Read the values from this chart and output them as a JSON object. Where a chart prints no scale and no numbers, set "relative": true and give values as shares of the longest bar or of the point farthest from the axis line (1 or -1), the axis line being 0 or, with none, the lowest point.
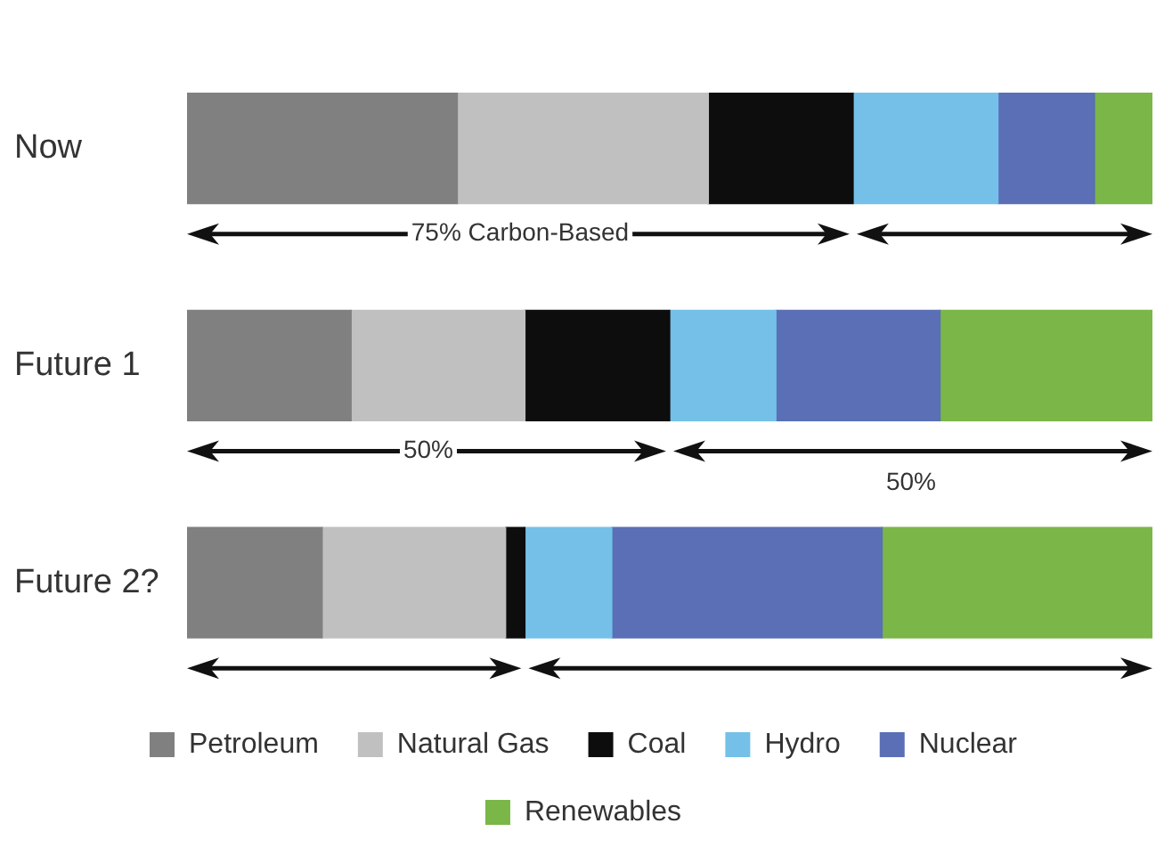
{
  "chart_data": {
    "type": "bar",
    "orientation": "horizontal",
    "stacked": true,
    "relative": true,
    "categories": [
      "Now",
      "Future 1",
      "Future 2?"
    ],
    "series": [
      {
        "name": "Petroleum",
        "color": "#808080",
        "values": [
          0.28,
          0.17,
          0.14
        ]
      },
      {
        "name": "Natural Gas",
        "color": "#c0c0c0",
        "values": [
          0.26,
          0.18,
          0.19
        ]
      },
      {
        "name": "Coal",
        "color": "#0d0d0d",
        "values": [
          0.15,
          0.15,
          0.02
        ]
      },
      {
        "name": "Hydro",
        "color": "#74c0e8",
        "values": [
          0.15,
          0.11,
          0.09
        ]
      },
      {
        "name": "Nuclear",
        "color": "#5a6fb5",
        "values": [
          0.1,
          0.17,
          0.28
        ]
      },
      {
        "name": "Renewables",
        "color": "#7ab648",
        "values": [
          0.06,
          0.22,
          0.28
        ]
      }
    ],
    "annotations": [
      "75% Carbon-Based",
      "50%",
      "50%"
    ],
    "legend": "bottom",
    "grid": false
  }
}
